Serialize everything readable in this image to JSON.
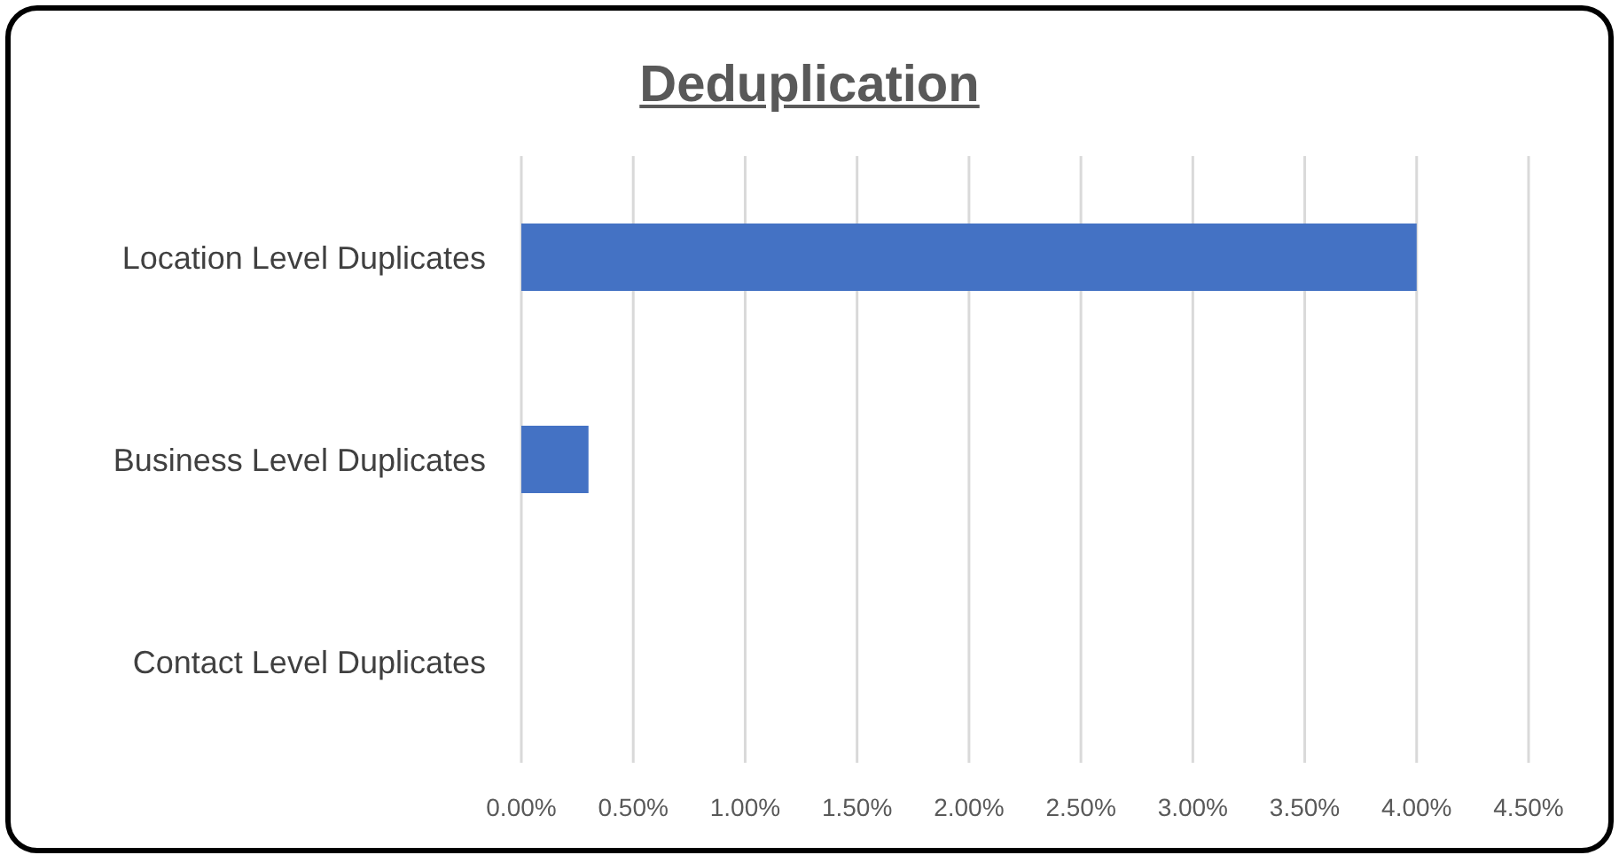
{
  "chart_data": {
    "type": "bar",
    "orientation": "horizontal",
    "title": "Deduplication",
    "categories": [
      "Location Level Duplicates",
      "Business Level Duplicates",
      "Contact Level Duplicates"
    ],
    "values": [
      4.0,
      0.3,
      0
    ],
    "color": "#4472c4",
    "xlim": [
      0,
      4.5
    ],
    "xticks": [
      {
        "value": 0,
        "label": "0.00%"
      },
      {
        "value": 0.5,
        "label": "0.50%"
      },
      {
        "value": 1,
        "label": "1.00%"
      },
      {
        "value": 1.5,
        "label": "1.50%"
      },
      {
        "value": 2,
        "label": "2.00%"
      },
      {
        "value": 2.5,
        "label": "2.50%"
      },
      {
        "value": 3,
        "label": "3.00%"
      },
      {
        "value": 3.5,
        "label": "3.50%"
      },
      {
        "value": 4,
        "label": "4.00%"
      },
      {
        "value": 4.5,
        "label": "4.50%"
      }
    ],
    "grid": "x",
    "legend": false
  }
}
